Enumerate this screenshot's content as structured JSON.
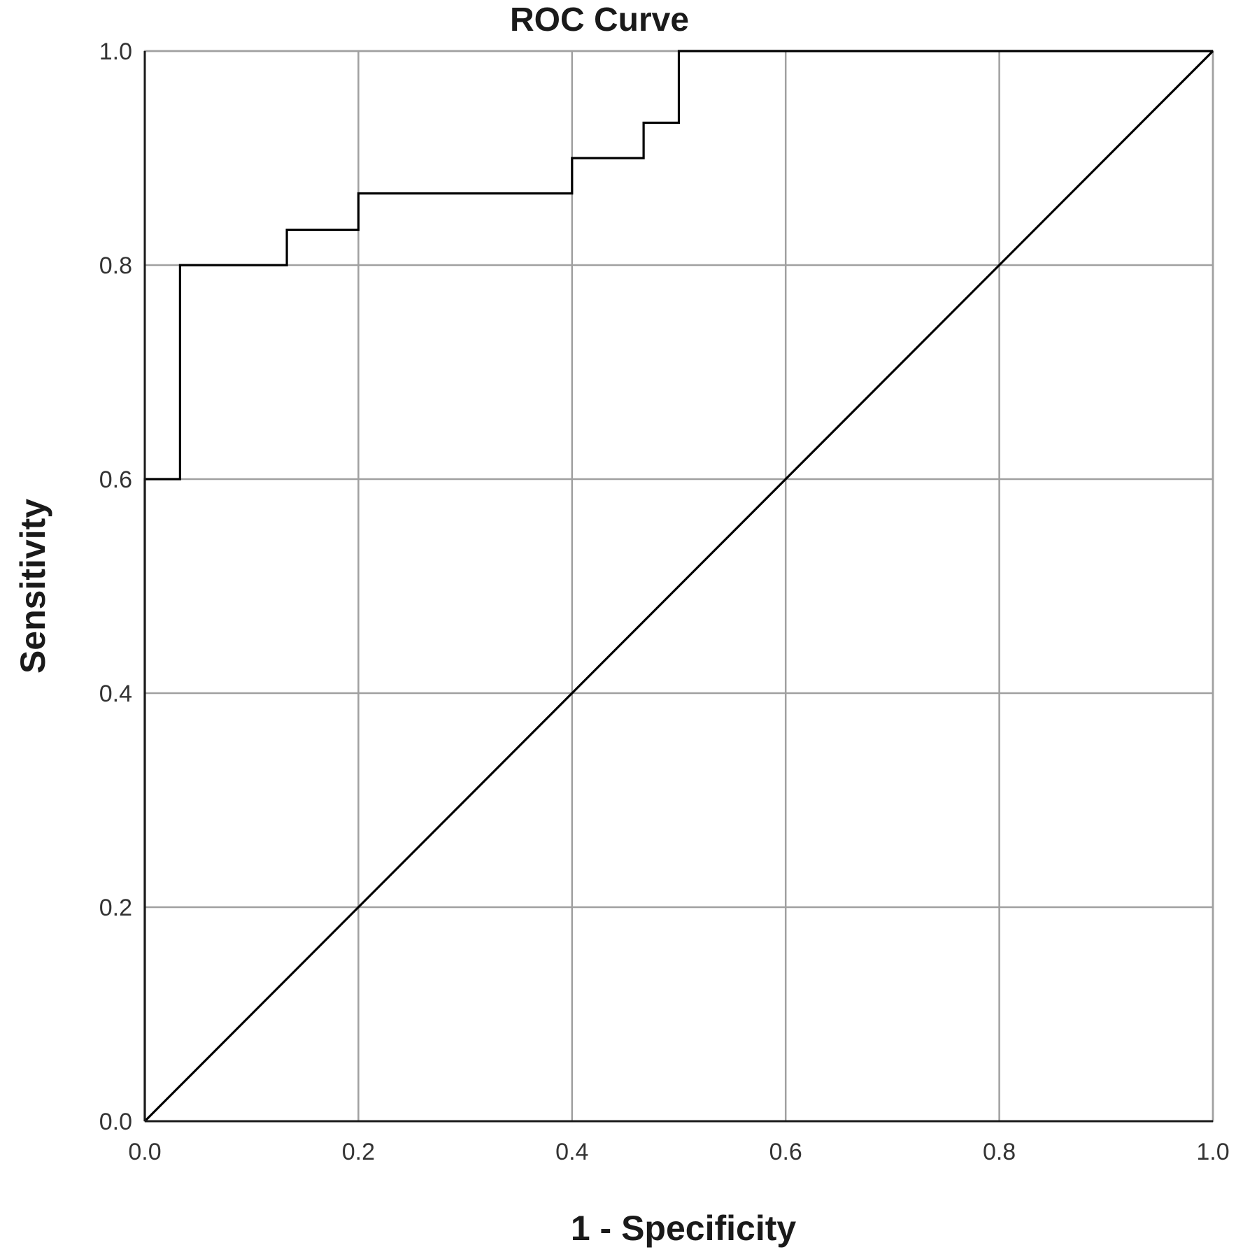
{
  "chart_data": {
    "type": "line",
    "title": "ROC Curve",
    "xlabel": "1 - Specificity",
    "ylabel": "Sensitivity",
    "xlim": [
      0,
      1
    ],
    "ylim": [
      0,
      1
    ],
    "x_ticks": [
      "0.0",
      "0.2",
      "0.4",
      "0.6",
      "0.8",
      "1.0"
    ],
    "y_ticks": [
      "0.0",
      "0.2",
      "0.4",
      "0.6",
      "0.8",
      "1.0"
    ],
    "grid": true,
    "legend": "none",
    "colors": {
      "grid": "#a0a0a0",
      "line": "#000000",
      "text": "#1a1a1a"
    },
    "series": [
      {
        "style": "step",
        "x": [
          0.0,
          0.0,
          0.033,
          0.033,
          0.133,
          0.133,
          0.2,
          0.2,
          0.4,
          0.4,
          0.467,
          0.467,
          0.5,
          0.5,
          1.0
        ],
        "y": [
          0.0,
          0.6,
          0.6,
          0.8,
          0.8,
          0.833,
          0.833,
          0.867,
          0.867,
          0.9,
          0.9,
          0.933,
          0.933,
          1.0,
          1.0
        ]
      },
      {
        "style": "reference",
        "x": [
          0.0,
          1.0
        ],
        "y": [
          0.0,
          1.0
        ]
      }
    ]
  }
}
